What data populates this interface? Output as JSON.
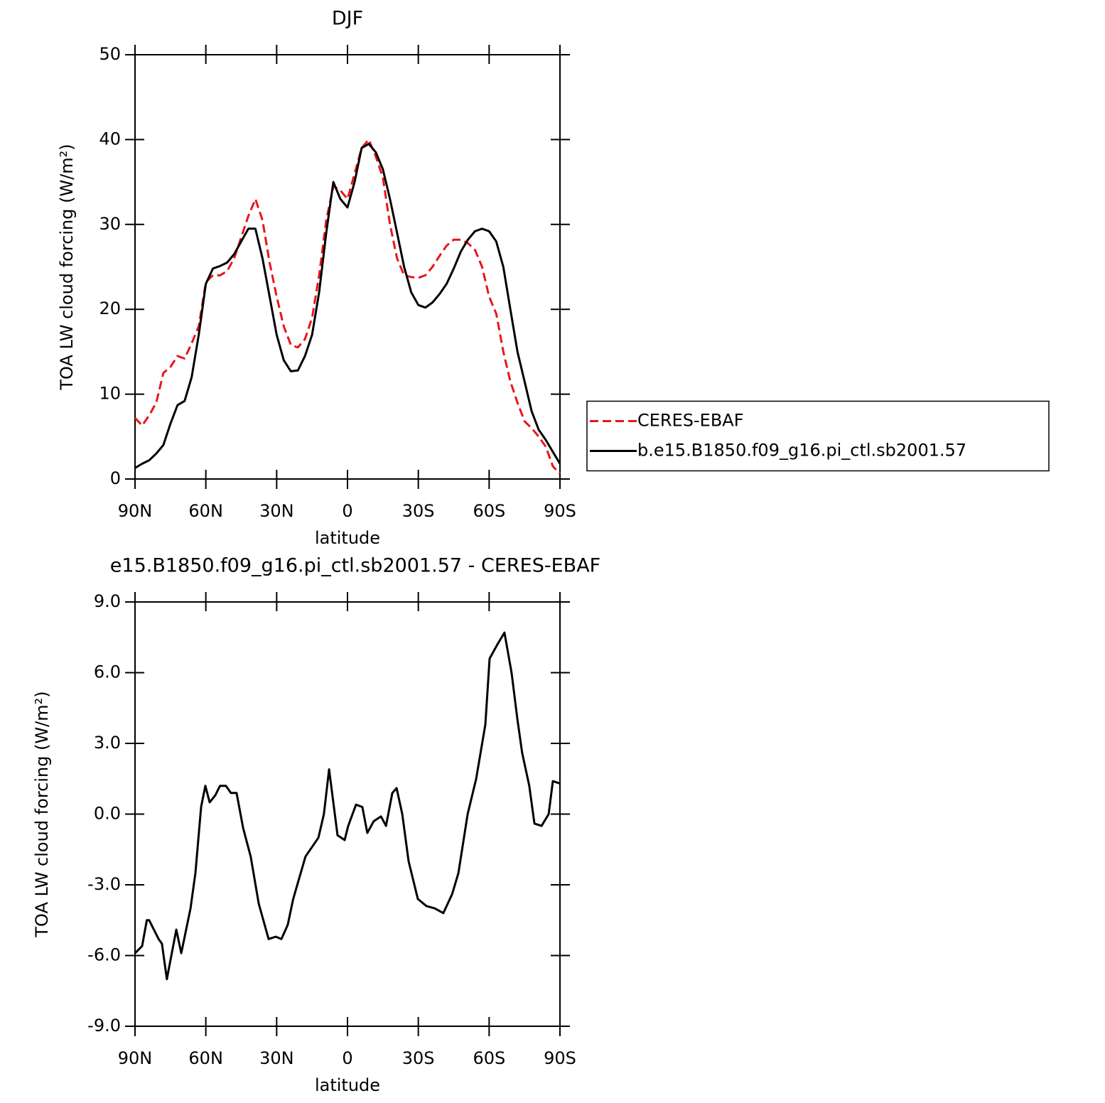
{
  "chart_data": [
    {
      "type": "line",
      "title": "DJF",
      "xlabel": "latitude",
      "ylabel": "TOA LW cloud forcing (W/m²)",
      "x": [
        90,
        87,
        84,
        81,
        78,
        75,
        72,
        69,
        66,
        63,
        60,
        57,
        54,
        51,
        48,
        45,
        42,
        39,
        36,
        33,
        30,
        27,
        24,
        21,
        18,
        15,
        12,
        9,
        6,
        3,
        0,
        -3,
        -6,
        -9,
        -12,
        -15,
        -18,
        -21,
        -24,
        -27,
        -30,
        -33,
        -36,
        -39,
        -42,
        -45,
        -48,
        -51,
        -54,
        -57,
        -60,
        -63,
        -66,
        -69,
        -72,
        -75,
        -78,
        -81,
        -84,
        -87,
        -90
      ],
      "series": [
        {
          "name": "CERES-EBAF",
          "color": "#e8161b",
          "line_style": "dashed",
          "values": [
            7.2,
            6.3,
            7.5,
            9,
            12.5,
            13.2,
            14.5,
            14.2,
            16,
            18,
            23.2,
            24,
            24,
            24.5,
            26,
            28.5,
            31,
            33,
            30.5,
            25.5,
            21.5,
            18,
            15.8,
            15.5,
            16.5,
            19,
            24,
            30.5,
            34.5,
            34,
            33,
            36,
            39,
            40,
            38,
            35.5,
            30,
            26,
            24,
            23.8,
            23.7,
            24,
            25,
            26.3,
            27.5,
            28.2,
            28.2,
            27.8,
            27,
            25,
            21.5,
            19.5,
            15,
            11.5,
            9,
            6.8,
            6,
            5,
            3.8,
            1.5,
            0.6
          ]
        },
        {
          "name": "b.e15.B1850.f09_g16.pi_ctl.sb2001.57",
          "color": "#000000",
          "line_style": "solid",
          "values": [
            1.3,
            1.8,
            2.2,
            3,
            4,
            6.5,
            8.7,
            9.2,
            12,
            17,
            23,
            24.8,
            25.1,
            25.5,
            26.5,
            28,
            29.5,
            29.5,
            26,
            21.5,
            17,
            14,
            12.7,
            12.8,
            14.5,
            17,
            22,
            29,
            35,
            33,
            32,
            35,
            39,
            39.5,
            38.5,
            36.5,
            33,
            29,
            25,
            22,
            20.5,
            20.2,
            20.8,
            21.8,
            23,
            24.8,
            26.8,
            28.2,
            29.2,
            29.5,
            29.2,
            28,
            25,
            20,
            15,
            11.5,
            8,
            5.8,
            4.6,
            3.2,
            1.8
          ]
        }
      ],
      "xlim": [
        90,
        -90
      ],
      "xticks": [
        {
          "value": 90,
          "label": "90N"
        },
        {
          "value": 60,
          "label": "60N"
        },
        {
          "value": 30,
          "label": "30N"
        },
        0,
        {
          "value": -30,
          "label": "30S"
        },
        {
          "value": -60,
          "label": "60S"
        },
        {
          "value": -90,
          "label": "90S"
        }
      ],
      "ylim": [
        0,
        50
      ],
      "yticks": [
        0,
        10,
        20,
        30,
        40,
        50
      ],
      "legend": "right"
    },
    {
      "type": "line",
      "title": "e15.B1850.f09_g16.pi_ctl.sb2001.57 - CERES-EBAF",
      "xlabel": "latitude",
      "ylabel": "TOA LW cloud forcing (W/m²)",
      "x": [
        90,
        87,
        85,
        84,
        80,
        78.6,
        76.5,
        72.5,
        70.4,
        66.5,
        64.4,
        62,
        60.2,
        58.4,
        56,
        54,
        51.5,
        49.4,
        47,
        44.2,
        41,
        37.6,
        33.4,
        30.4,
        28,
        25.3,
        23,
        17.8,
        12.3,
        10,
        7.8,
        4.2,
        1.2,
        -0.3,
        -3.6,
        -6.3,
        -8.4,
        -11.1,
        -14.2,
        -16.3,
        -19,
        -20.8,
        -23.2,
        -25.9,
        -29.8,
        -33.4,
        -37,
        -40.6,
        -44.3,
        -47,
        -50.9,
        -54.5,
        -58.4,
        -60.2,
        -63.5,
        -66.5,
        -69.5,
        -72,
        -74,
        -77,
        -79.2,
        -82.2,
        -85.2,
        -87,
        -90
      ],
      "series": [
        {
          "color": "#000000",
          "line_style": "solid",
          "values": [
            -5.9,
            -5.6,
            -4.5,
            -4.5,
            -5.3,
            -5.5,
            -7.0,
            -4.9,
            -5.9,
            -4.0,
            -2.5,
            0.3,
            1.2,
            0.5,
            0.8,
            1.2,
            1.2,
            0.9,
            0.9,
            -0.6,
            -1.8,
            -3.8,
            -5.3,
            -5.2,
            -5.3,
            -4.7,
            -3.6,
            -1.8,
            -1.0,
            0,
            1.9,
            -0.9,
            -1.1,
            -0.5,
            0.4,
            0.3,
            -0.8,
            -0.3,
            -0.1,
            -0.5,
            0.9,
            1.1,
            0,
            -2.0,
            -3.6,
            -3.9,
            -4.0,
            -4.2,
            -3.4,
            -2.5,
            0,
            1.5,
            3.8,
            6.6,
            7.2,
            7.7,
            6.0,
            4.0,
            2.6,
            1.2,
            -0.4,
            -0.5,
            0,
            1.4,
            1.3
          ]
        }
      ],
      "xlim": [
        90,
        -90
      ],
      "xticks": [
        {
          "value": 90,
          "label": "90N"
        },
        {
          "value": 60,
          "label": "60N"
        },
        {
          "value": 30,
          "label": "30N"
        },
        0,
        {
          "value": -30,
          "label": "30S"
        },
        {
          "value": -60,
          "label": "60S"
        },
        {
          "value": -90,
          "label": "90S"
        }
      ],
      "ylim": [
        -9,
        9
      ],
      "yticks": [
        {
          "value": -9,
          "label": "-9.0"
        },
        {
          "value": -6,
          "label": "-6.0"
        },
        {
          "value": -3,
          "label": "-3.0"
        },
        {
          "value": 0,
          "label": "0.0"
        },
        {
          "value": 3,
          "label": "3.0"
        },
        {
          "value": 6,
          "label": "6.0"
        },
        {
          "value": 9,
          "label": "9.0"
        }
      ]
    }
  ]
}
